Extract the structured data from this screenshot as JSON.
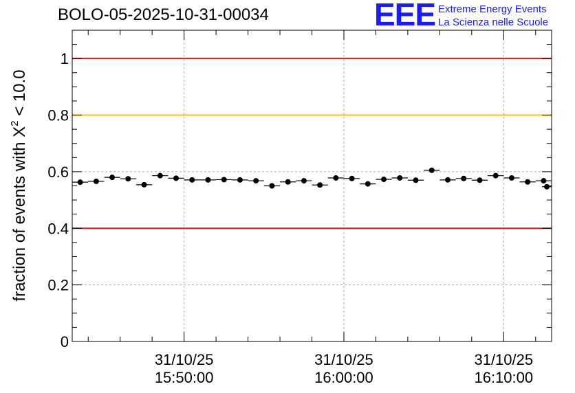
{
  "header": {
    "run_title": "BOLO-05-2025-10-31-00034",
    "logo_mark": "EEE",
    "logo_line1": "Extreme Energy Events",
    "logo_line2": "La Scienza nelle Scuole"
  },
  "colors": {
    "logo": "#1a1aff",
    "red_line": "#e41a1a",
    "yellow_line": "#ffc000",
    "grid": "#aaaaaa",
    "marker": "#000000"
  },
  "chart_data": {
    "type": "scatter",
    "title": "BOLO-05-2025-10-31-00034",
    "ylabel": "fraction of events with χ² < 10.0",
    "ylabel_main": "fraction of events with X",
    "ylabel_sup": "2",
    "ylabel_tail": " < 10.0",
    "xlabel": "",
    "x_unit": "minutes since 31/10/25 15:50:00",
    "xlim": [
      -7,
      23
    ],
    "ylim": [
      0,
      1.1
    ],
    "y_ticks": [
      0,
      0.2,
      0.4,
      0.6,
      0.8,
      1
    ],
    "y_tick_labels": [
      "0",
      "0.2",
      "0.4",
      "0.6",
      "0.8",
      "1"
    ],
    "x_ticks": [
      0,
      10,
      20
    ],
    "x_tick_labels": [
      {
        "date": "31/10/25",
        "time": "15:50:00"
      },
      {
        "date": "31/10/25",
        "time": "16:00:00"
      },
      {
        "date": "31/10/25",
        "time": "16:10:00"
      }
    ],
    "bin_width": 1,
    "reference_lines": [
      {
        "name": "upper-red-line",
        "y": 1.0,
        "color": "#e41a1a"
      },
      {
        "name": "yellow-line",
        "y": 0.8,
        "color": "#ffc000"
      },
      {
        "name": "lower-red-line",
        "y": 0.4,
        "color": "#e41a1a"
      }
    ],
    "series": [
      {
        "name": "fraction",
        "x": [
          -6.5,
          -5.5,
          -4.5,
          -3.5,
          -2.5,
          -1.5,
          -0.5,
          0.5,
          1.5,
          2.5,
          3.5,
          4.5,
          5.5,
          6.5,
          7.5,
          8.5,
          9.5,
          10.5,
          11.5,
          12.5,
          13.5,
          14.5,
          15.5,
          16.5,
          17.5,
          18.5,
          19.5,
          20.5,
          21.5,
          22.5
        ],
        "y": [
          0.563,
          0.566,
          0.58,
          0.575,
          0.554,
          0.586,
          0.577,
          0.571,
          0.571,
          0.572,
          0.571,
          0.568,
          0.55,
          0.564,
          0.568,
          0.553,
          0.578,
          0.576,
          0.557,
          0.573,
          0.578,
          0.57,
          0.605,
          0.571,
          0.576,
          0.57,
          0.586,
          0.578,
          0.564,
          0.568
        ],
        "y_err": [
          0.007,
          0.007,
          0.007,
          0.007,
          0.007,
          0.007,
          0.007,
          0.007,
          0.007,
          0.007,
          0.007,
          0.007,
          0.007,
          0.007,
          0.007,
          0.007,
          0.007,
          0.007,
          0.007,
          0.007,
          0.007,
          0.007,
          0.007,
          0.007,
          0.007,
          0.007,
          0.007,
          0.007,
          0.007,
          0.007
        ]
      }
    ],
    "last_partial_point": {
      "x": 22.7,
      "y": 0.547,
      "half_width": 0.3
    }
  }
}
